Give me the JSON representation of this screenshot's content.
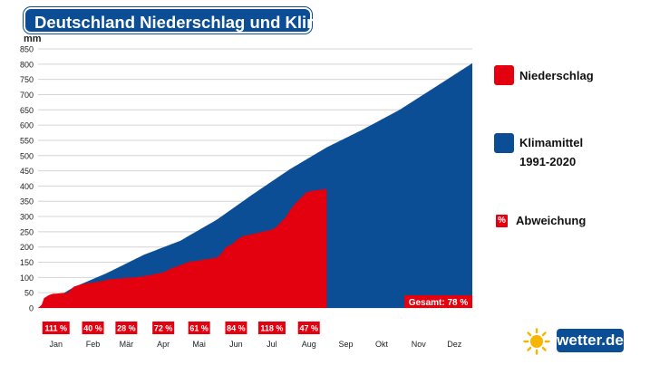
{
  "title": "Deutschland Niederschlag und Klima",
  "unit": "mm",
  "legend": {
    "precip": {
      "label": "Niederschlag",
      "color": "#e3000f"
    },
    "climate": {
      "label_line1": "Klimamittel",
      "label_line2": "1991-2020",
      "color": "#0b4e96"
    },
    "deviation": {
      "symbol": "%",
      "label": "Abweichung"
    }
  },
  "brand": {
    "text": "wetter.de",
    "icon": "sun-icon"
  },
  "chart_data": {
    "type": "area",
    "y_ticks": [
      0,
      50,
      100,
      150,
      200,
      250,
      300,
      350,
      400,
      450,
      500,
      550,
      600,
      650,
      700,
      750,
      800,
      850
    ],
    "ylim": [
      0,
      850
    ],
    "months": [
      "Jan",
      "Feb",
      "Mär",
      "Apr",
      "Mai",
      "Jun",
      "Jul",
      "Aug",
      "Sep",
      "Okt",
      "Nov",
      "Dez"
    ],
    "deviations": [
      "111 %",
      "40 %",
      "28 %",
      "72 %",
      "61 %",
      "84 %",
      "118 %",
      "47 %"
    ],
    "total_label": "Gesamt: 78 %",
    "series": [
      {
        "name": "Klimamittel",
        "color": "#0b4e96",
        "day": [
          1,
          31,
          59,
          90,
          120,
          151,
          181,
          212,
          243,
          273,
          304,
          334,
          365
        ],
        "mm": [
          0,
          68,
          115,
          175,
          220,
          290,
          373,
          455,
          527,
          585,
          650,
          725,
          803
        ]
      },
      {
        "name": "Niederschlag",
        "color": "#e3000f",
        "day": [
          1,
          4,
          6,
          10,
          13,
          19,
          26,
          31,
          38,
          46,
          55,
          59,
          65,
          73,
          80,
          88,
          95,
          100,
          107,
          113,
          120,
          128,
          135,
          142,
          151,
          155,
          158,
          164,
          168,
          172,
          178,
          184,
          189,
          195,
          199,
          203,
          209,
          212,
          216,
          221,
          226,
          232,
          238,
          243
        ],
        "mm": [
          0,
          10,
          32,
          42,
          46,
          48,
          50,
          70,
          78,
          83,
          88,
          93,
          95,
          98,
          100,
          103,
          108,
          112,
          118,
          130,
          140,
          152,
          155,
          160,
          165,
          180,
          198,
          210,
          225,
          235,
          240,
          245,
          250,
          255,
          260,
          275,
          300,
          320,
          340,
          360,
          380,
          385,
          388,
          390
        ]
      }
    ]
  }
}
